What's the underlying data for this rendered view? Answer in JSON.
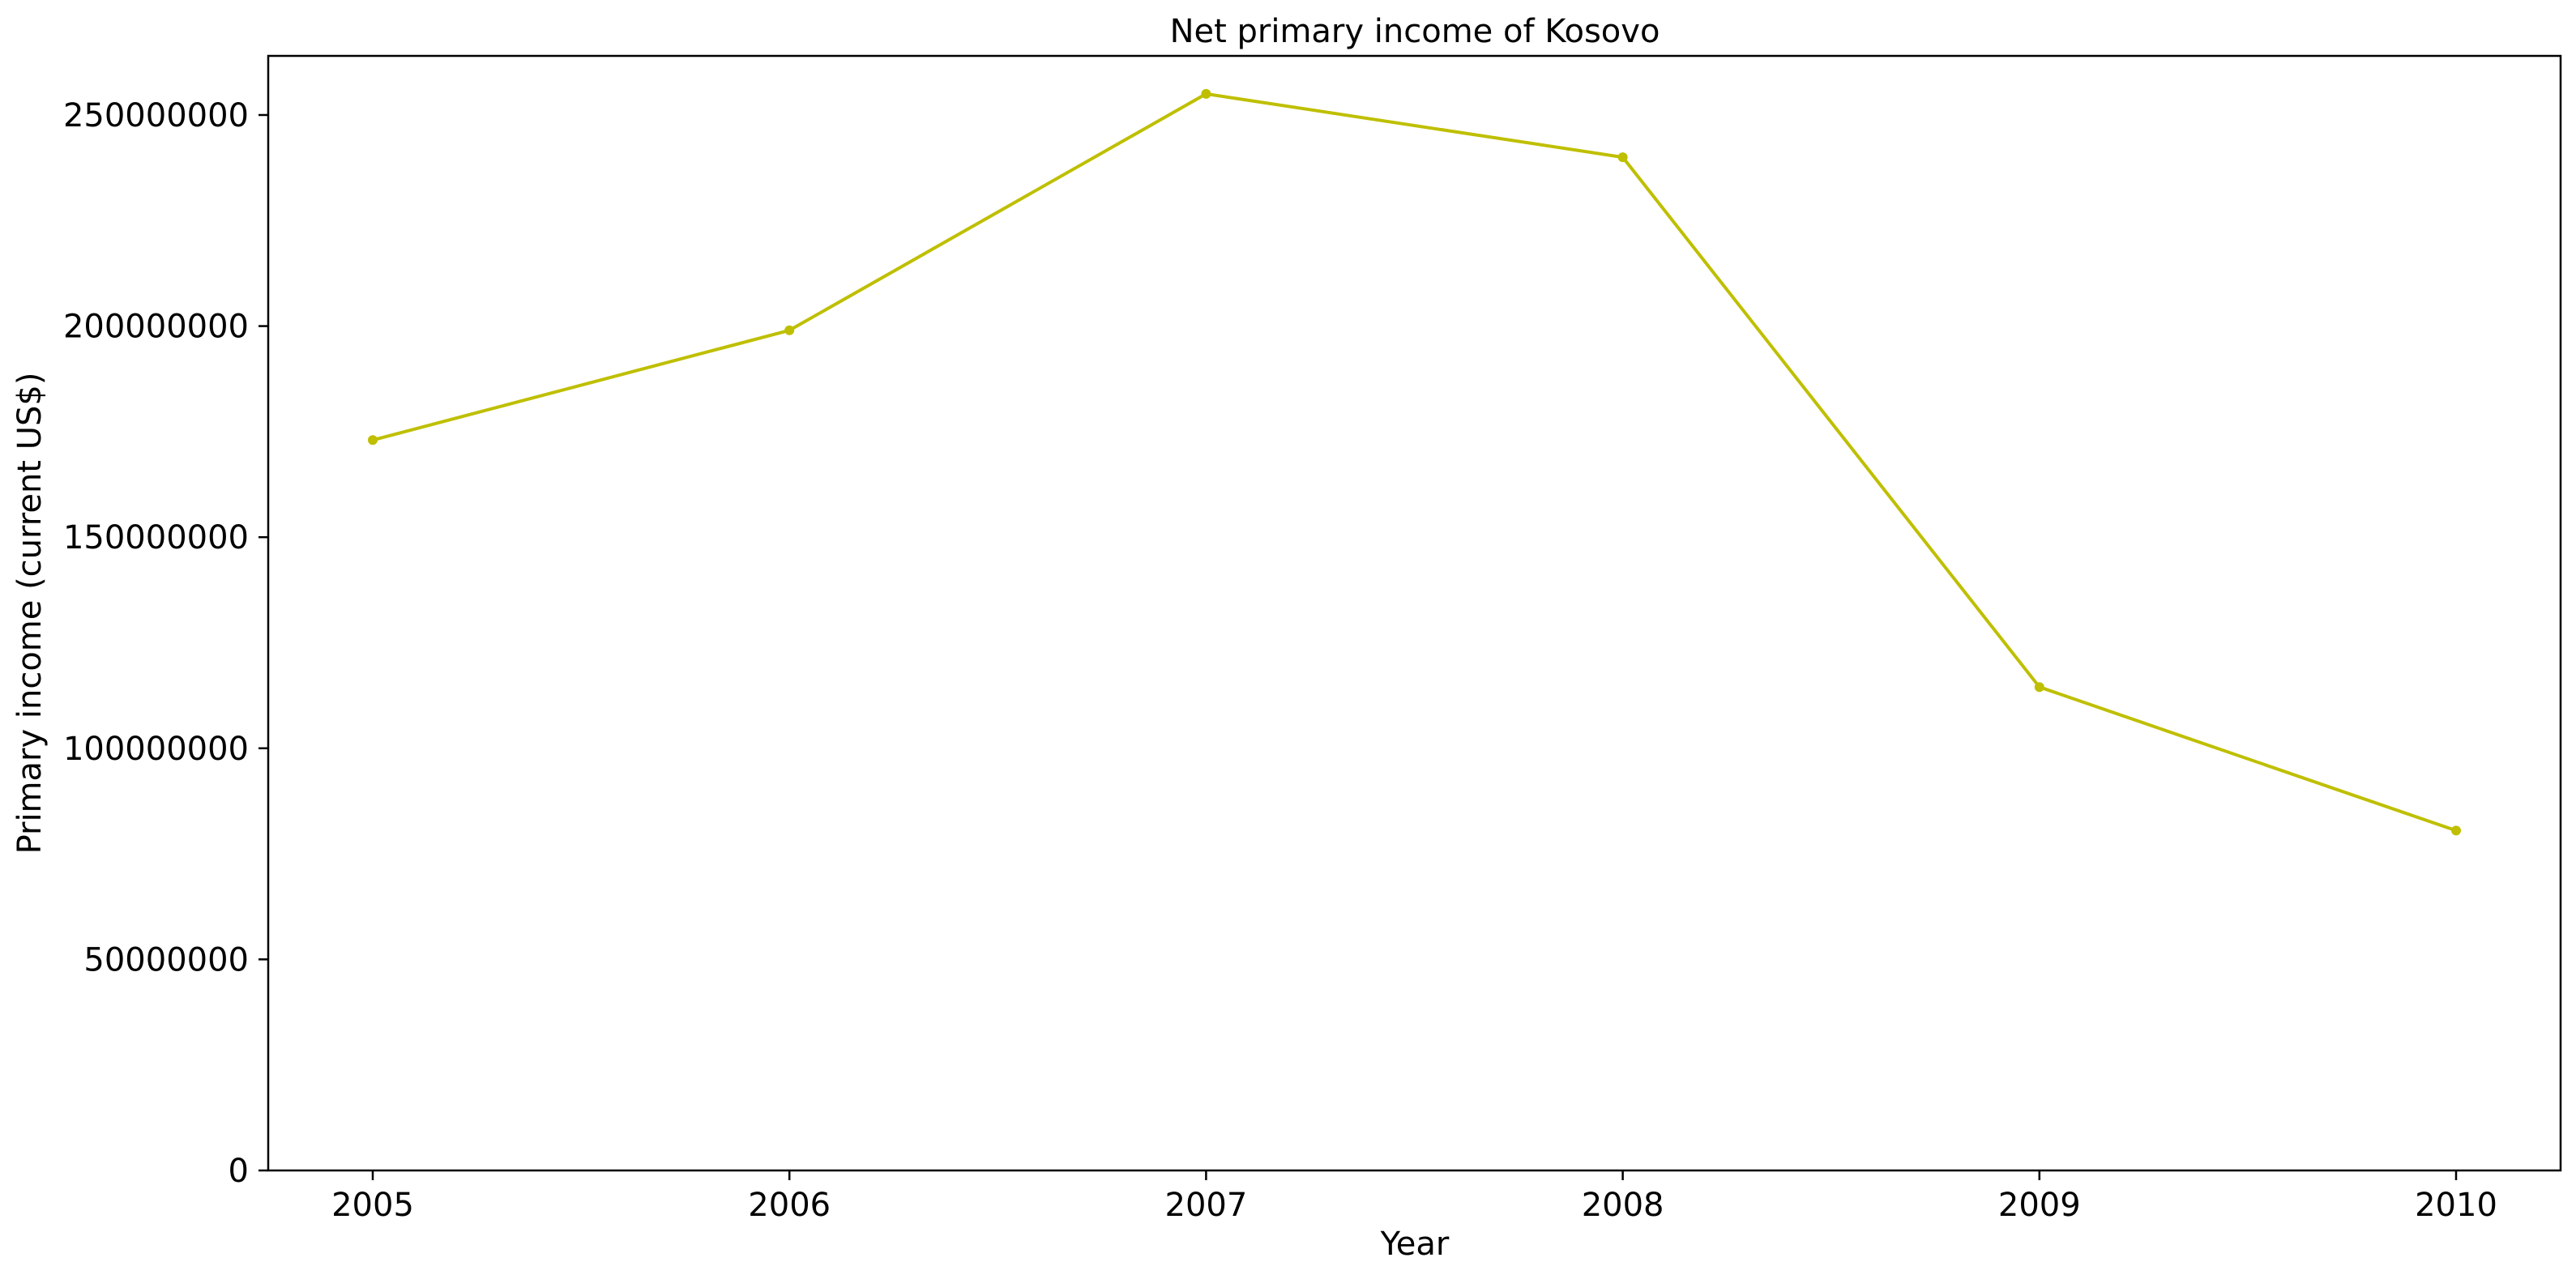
{
  "chart_data": {
    "type": "line",
    "title": "Net primary income of Kosovo",
    "xlabel": "Year",
    "ylabel": "Primary income (current US$)",
    "x": [
      "2005",
      "2006",
      "2007",
      "2008",
      "2009",
      "2010"
    ],
    "series": [
      {
        "values": [
          173000000,
          199000000,
          255000000,
          240000000,
          114500000,
          80500000
        ],
        "color": "#bfbf00"
      }
    ],
    "yticks": [
      "0",
      "50000000",
      "100000000",
      "150000000",
      "200000000",
      "250000000"
    ],
    "ylim": [
      0,
      264000000
    ],
    "grid": false,
    "legend": "none"
  }
}
